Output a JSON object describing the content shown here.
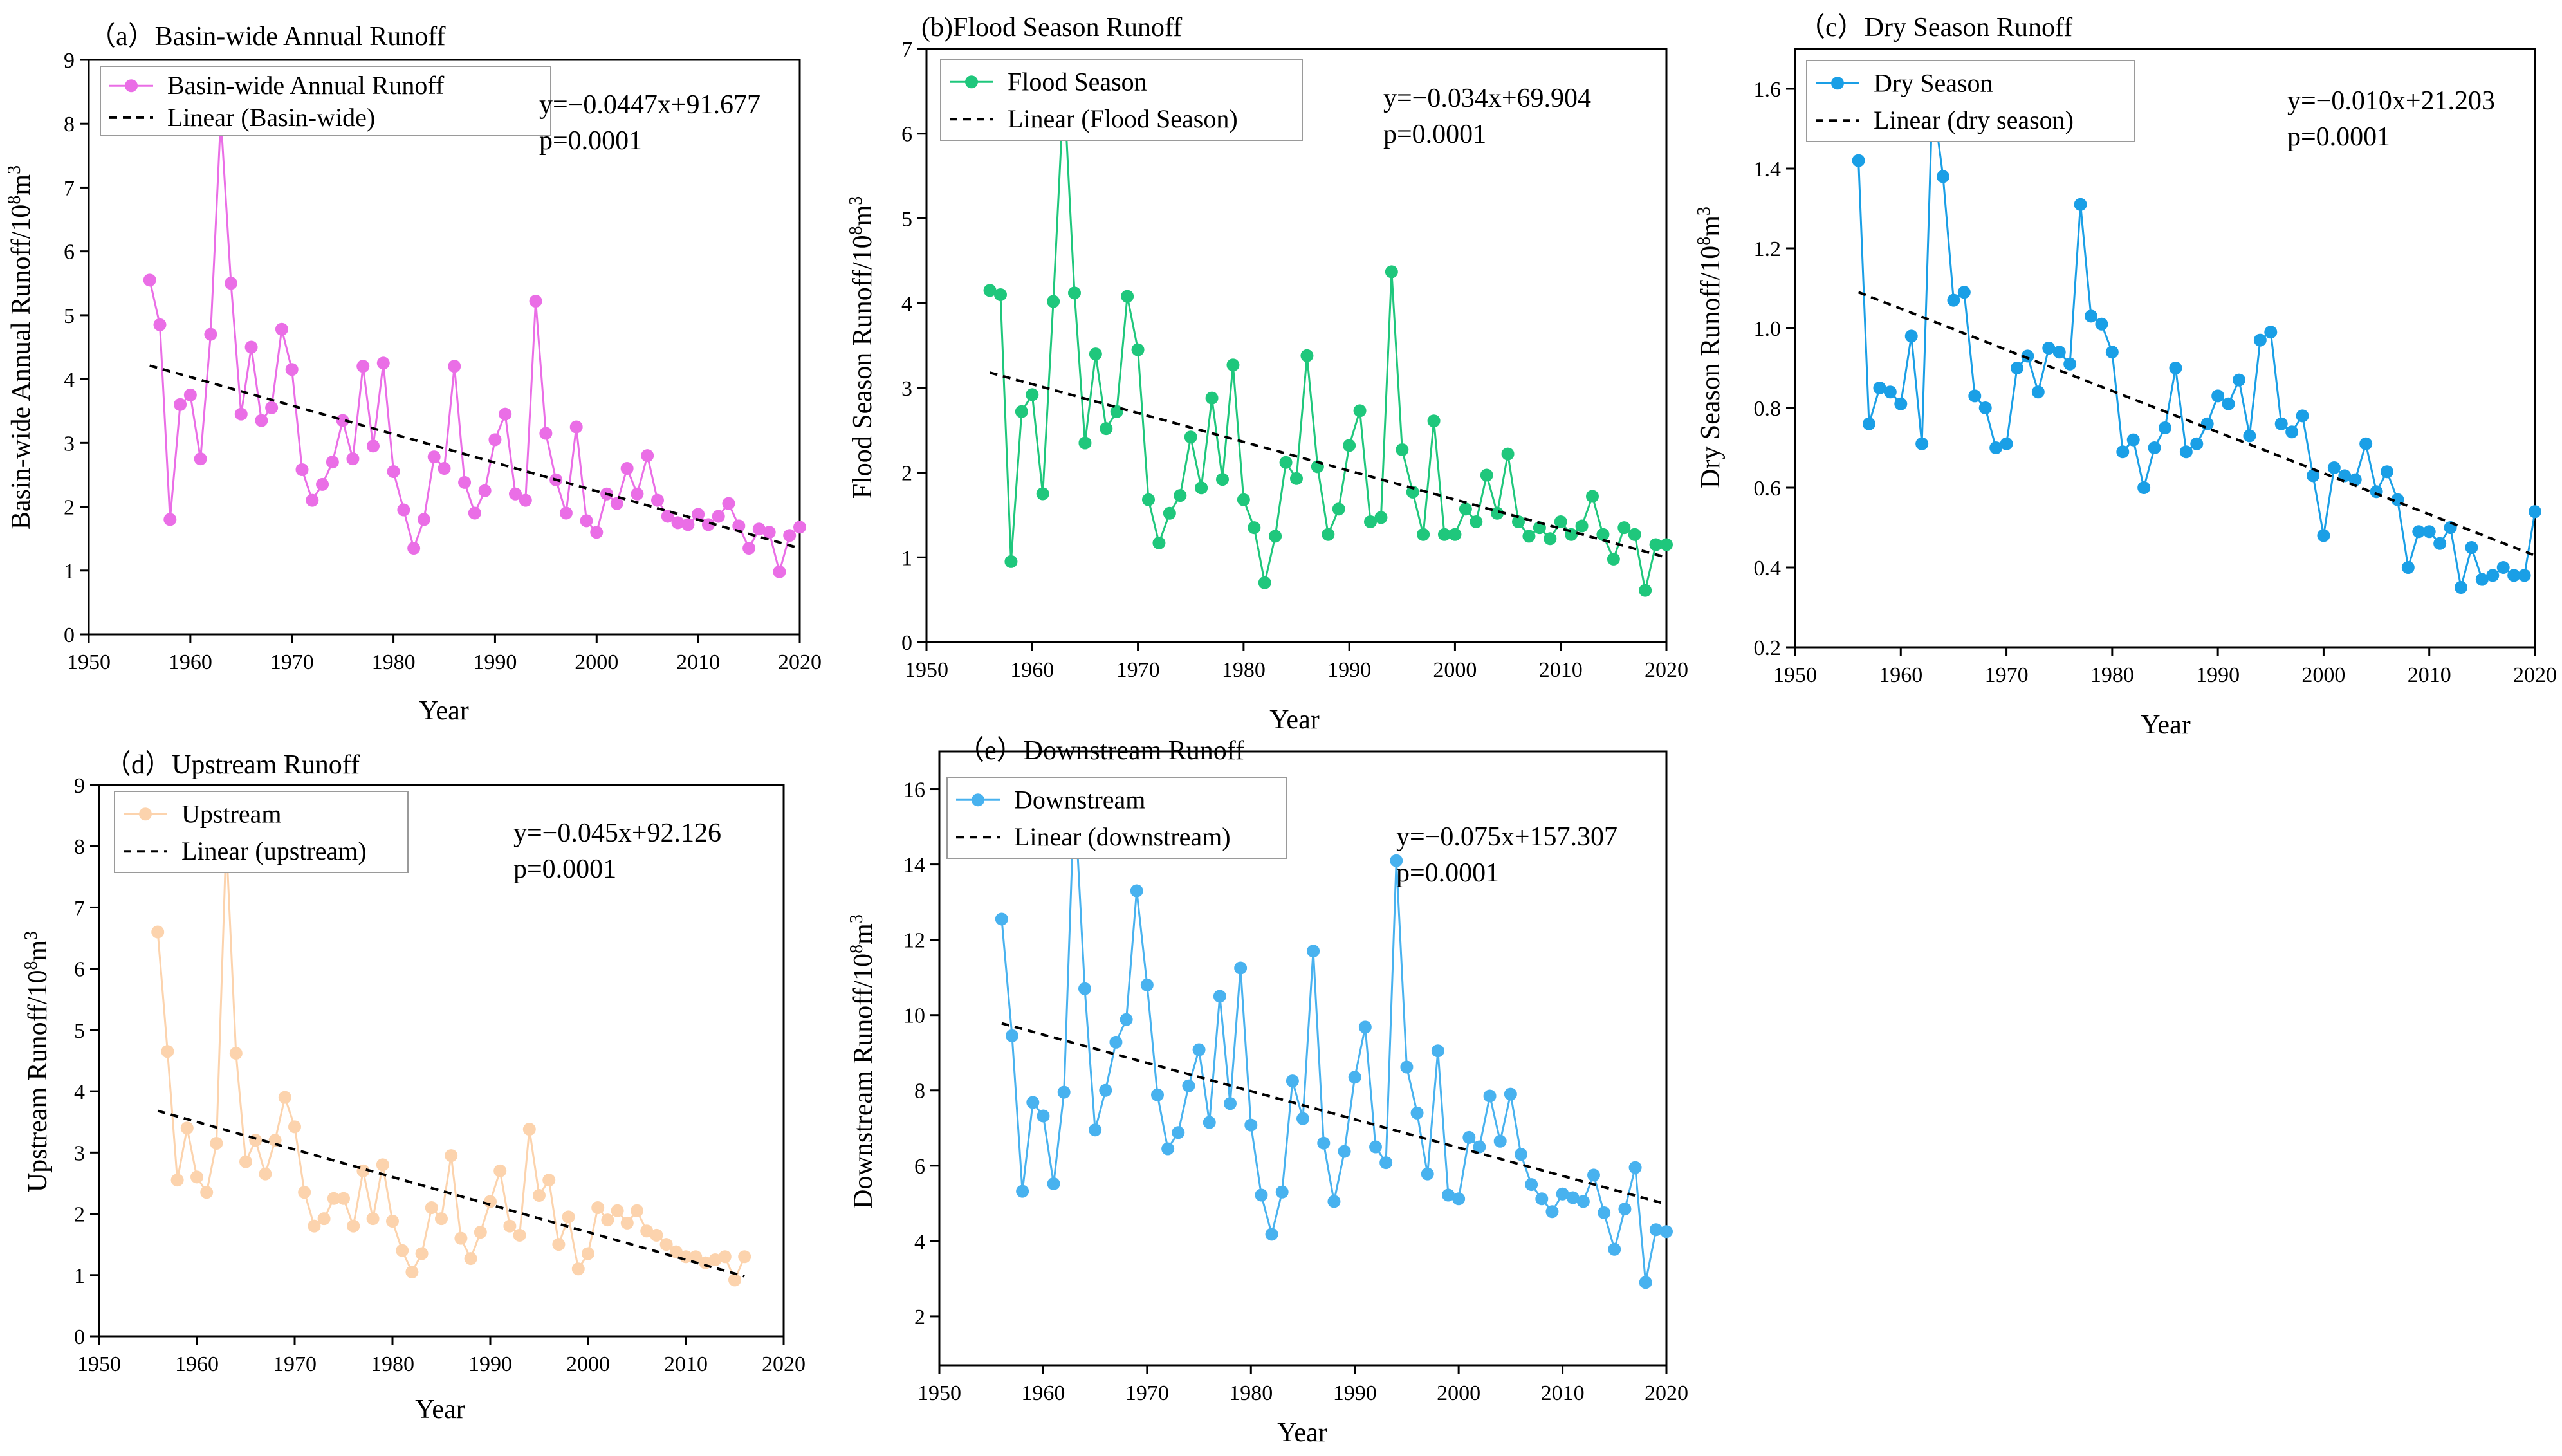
{
  "chart_data": [
    {
      "id": "a",
      "type": "line",
      "title": "（a）Basin-wide Annual Runoff",
      "xlabel": "Year",
      "ylabel": "Basin-wide Annual Runoff/10⁸m³",
      "xlim": [
        1950,
        2020
      ],
      "ylim": [
        0,
        9
      ],
      "xticks": [
        1950,
        1960,
        1970,
        1980,
        1990,
        2000,
        2010,
        2020
      ],
      "yticks": [
        0,
        1,
        2,
        3,
        4,
        5,
        6,
        7,
        8,
        9
      ],
      "color": "#ea6ee6",
      "legend": [
        "Basin-wide Annual Runoff",
        "Linear (Basin-wide)"
      ],
      "equation": "y=−0.0447x+91.677",
      "pvalue": "p=0.0001",
      "trend": {
        "x": [
          1956,
          2020
        ],
        "y": [
          4.21,
          1.35
        ]
      },
      "series": [
        {
          "name": "Basin-wide Annual Runoff",
          "x": [
            1956,
            1957,
            1958,
            1959,
            1960,
            1961,
            1962,
            1963,
            1964,
            1965,
            1966,
            1967,
            1968,
            1969,
            1970,
            1971,
            1972,
            1973,
            1974,
            1975,
            1976,
            1977,
            1978,
            1979,
            1980,
            1981,
            1982,
            1983,
            1984,
            1985,
            1986,
            1987,
            1988,
            1989,
            1990,
            1991,
            1992,
            1993,
            1994,
            1995,
            1996,
            1997,
            1998,
            1999,
            2000,
            2001,
            2002,
            2003,
            2004,
            2005,
            2006,
            2007,
            2008,
            2009,
            2010,
            2011,
            2012,
            2013,
            2014,
            2015,
            2016,
            2017,
            2018,
            2019,
            2020
          ],
          "y": [
            5.55,
            4.85,
            1.8,
            3.6,
            3.75,
            2.75,
            4.7,
            8.1,
            5.5,
            3.45,
            4.5,
            3.35,
            3.55,
            4.78,
            4.15,
            2.58,
            2.1,
            2.35,
            2.7,
            3.35,
            2.75,
            4.2,
            2.95,
            4.25,
            2.55,
            1.95,
            1.35,
            1.8,
            2.78,
            2.6,
            4.2,
            2.38,
            1.9,
            2.25,
            3.05,
            3.45,
            2.2,
            2.1,
            5.22,
            3.15,
            2.42,
            1.9,
            3.25,
            1.78,
            1.6,
            2.2,
            2.05,
            2.6,
            2.2,
            2.8,
            2.1,
            1.85,
            1.75,
            1.72,
            1.88,
            1.72,
            1.85,
            2.05,
            1.7,
            1.35,
            1.65,
            1.6,
            0.98,
            1.55,
            1.68
          ]
        }
      ]
    },
    {
      "id": "b",
      "type": "line",
      "title": "(b)Flood Season Runoff",
      "xlabel": "Year",
      "ylabel": "Flood Season Runoff/10⁸m³",
      "xlim": [
        1950,
        2020
      ],
      "ylim": [
        0,
        7
      ],
      "xticks": [
        1950,
        1960,
        1970,
        1980,
        1990,
        2000,
        2010,
        2020
      ],
      "yticks": [
        0,
        1,
        2,
        3,
        4,
        5,
        6,
        7
      ],
      "color": "#1fc77c",
      "legend": [
        "Flood Season",
        "Linear (Flood Season)"
      ],
      "equation": "y=−0.034x+69.904",
      "pvalue": "p=0.0001",
      "trend": {
        "x": [
          1956,
          2020
        ],
        "y": [
          3.18,
          1.0
        ]
      },
      "series": [
        {
          "name": "Flood Season",
          "x": [
            1956,
            1957,
            1958,
            1959,
            1960,
            1961,
            1962,
            1963,
            1964,
            1965,
            1966,
            1967,
            1968,
            1969,
            1970,
            1971,
            1972,
            1973,
            1974,
            1975,
            1976,
            1977,
            1978,
            1979,
            1980,
            1981,
            1982,
            1983,
            1984,
            1985,
            1986,
            1987,
            1988,
            1989,
            1990,
            1991,
            1992,
            1993,
            1994,
            1995,
            1996,
            1997,
            1998,
            1999,
            2000,
            2001,
            2002,
            2003,
            2004,
            2005,
            2006,
            2007,
            2008,
            2009,
            2010,
            2011,
            2012,
            2013,
            2014,
            2015,
            2016,
            2017,
            2018,
            2019,
            2020
          ],
          "y": [
            4.15,
            4.1,
            0.95,
            2.72,
            2.92,
            1.75,
            4.02,
            6.55,
            4.12,
            2.35,
            3.4,
            2.52,
            2.72,
            4.08,
            3.45,
            1.68,
            1.17,
            1.52,
            1.73,
            2.42,
            1.82,
            2.88,
            1.92,
            3.27,
            1.68,
            1.35,
            0.7,
            1.25,
            2.12,
            1.93,
            3.38,
            2.07,
            1.27,
            1.57,
            2.32,
            2.73,
            1.42,
            1.47,
            4.37,
            2.27,
            1.77,
            1.27,
            2.61,
            1.27,
            1.27,
            1.57,
            1.42,
            1.97,
            1.52,
            2.22,
            1.42,
            1.25,
            1.35,
            1.22,
            1.42,
            1.27,
            1.37,
            1.72,
            1.27,
            0.98,
            1.35,
            1.27,
            0.61,
            1.15,
            1.15
          ]
        }
      ]
    },
    {
      "id": "c",
      "type": "line",
      "title": "（c）Dry Season Runoff",
      "xlabel": "Year",
      "ylabel": "Dry Season Runoff/10⁸m³",
      "xlim": [
        1950,
        2020
      ],
      "ylim": [
        0.2,
        1.7
      ],
      "xticks": [
        1950,
        1960,
        1970,
        1980,
        1990,
        2000,
        2010,
        2020
      ],
      "yticks": [
        0.2,
        0.4,
        0.6,
        0.8,
        1.0,
        1.2,
        1.4,
        1.6
      ],
      "color": "#1a9fe6",
      "legend": [
        "Dry Season",
        "Linear (dry season)"
      ],
      "equation": "y=−0.010x+21.203",
      "pvalue": "p=0.0001",
      "trend": {
        "x": [
          1956,
          2020
        ],
        "y": [
          1.09,
          0.43
        ]
      },
      "series": [
        {
          "name": "Dry Season",
          "x": [
            1956,
            1957,
            1958,
            1959,
            1960,
            1961,
            1962,
            1963,
            1964,
            1965,
            1966,
            1967,
            1968,
            1969,
            1970,
            1971,
            1972,
            1973,
            1974,
            1975,
            1976,
            1977,
            1978,
            1979,
            1980,
            1981,
            1982,
            1983,
            1984,
            1985,
            1986,
            1987,
            1988,
            1989,
            1990,
            1991,
            1992,
            1993,
            1994,
            1995,
            1996,
            1997,
            1998,
            1999,
            2000,
            2001,
            2002,
            2003,
            2004,
            2005,
            2006,
            2007,
            2008,
            2009,
            2010,
            2011,
            2012,
            2013,
            2014,
            2015,
            2016,
            2017,
            2018,
            2019,
            2020
          ],
          "y": [
            1.42,
            0.76,
            0.85,
            0.84,
            0.81,
            0.98,
            0.71,
            1.58,
            1.38,
            1.07,
            1.09,
            0.83,
            0.8,
            0.7,
            0.71,
            0.9,
            0.93,
            0.84,
            0.95,
            0.94,
            0.91,
            1.31,
            1.03,
            1.01,
            0.94,
            0.69,
            0.72,
            0.6,
            0.7,
            0.75,
            0.9,
            0.69,
            0.71,
            0.76,
            0.83,
            0.81,
            0.87,
            0.73,
            0.97,
            0.99,
            0.76,
            0.74,
            0.78,
            0.63,
            0.48,
            0.65,
            0.63,
            0.62,
            0.71,
            0.59,
            0.64,
            0.57,
            0.4,
            0.49,
            0.49,
            0.46,
            0.5,
            0.35,
            0.45,
            0.37,
            0.38,
            0.4,
            0.38,
            0.38,
            0.54
          ]
        }
      ]
    },
    {
      "id": "d",
      "type": "line",
      "title": "（d）Upstream Runoff",
      "xlabel": "Year",
      "ylabel": "Upstream Runoff/10⁸m³",
      "xlim": [
        1950,
        2020
      ],
      "ylim": [
        0,
        9
      ],
      "xticks": [
        1950,
        1960,
        1970,
        1980,
        1990,
        2000,
        2010,
        2020
      ],
      "yticks": [
        0,
        1,
        2,
        3,
        4,
        5,
        6,
        7,
        8,
        9
      ],
      "color": "#fcd3ad",
      "legend": [
        "Upstream",
        "Linear (upstream)"
      ],
      "equation": "y=−0.045x+92.126",
      "pvalue": "p=0.0001",
      "trend": {
        "x": [
          1956,
          2016
        ],
        "y": [
          3.68,
          0.98
        ]
      },
      "series": [
        {
          "name": "Upstream",
          "x": [
            1956,
            1957,
            1958,
            1959,
            1960,
            1961,
            1962,
            1963,
            1964,
            1965,
            1966,
            1967,
            1968,
            1969,
            1970,
            1971,
            1972,
            1973,
            1974,
            1975,
            1976,
            1977,
            1978,
            1979,
            1980,
            1981,
            1982,
            1983,
            1984,
            1985,
            1986,
            1987,
            1988,
            1989,
            1990,
            1991,
            1992,
            1993,
            1994,
            1995,
            1996,
            1997,
            1998,
            1999,
            2000,
            2001,
            2002,
            2003,
            2004,
            2005,
            2006,
            2007,
            2008,
            2009,
            2010,
            2011,
            2012,
            2013,
            2014,
            2015,
            2016
          ],
          "y": [
            6.6,
            4.65,
            2.55,
            3.4,
            2.6,
            2.35,
            3.15,
            8.1,
            4.62,
            2.85,
            3.2,
            2.65,
            3.2,
            3.9,
            3.42,
            2.35,
            1.8,
            1.92,
            2.25,
            2.25,
            1.8,
            2.7,
            1.92,
            2.8,
            1.88,
            1.4,
            1.05,
            1.35,
            2.1,
            1.92,
            2.95,
            1.6,
            1.27,
            1.7,
            2.2,
            2.7,
            1.8,
            1.65,
            3.38,
            2.3,
            2.55,
            1.5,
            1.95,
            1.1,
            1.35,
            2.1,
            1.9,
            2.05,
            1.85,
            2.05,
            1.72,
            1.65,
            1.5,
            1.38,
            1.3,
            1.3,
            1.2,
            1.25,
            1.3,
            0.92,
            1.3
          ]
        }
      ]
    },
    {
      "id": "e",
      "type": "line",
      "title": "（e）Downstream Runoff",
      "xlabel": "Year",
      "ylabel": "Downstream Runoff/10⁸m³",
      "xlim": [
        1950,
        2020
      ],
      "ylim": [
        0.7,
        17
      ],
      "xticks": [
        1950,
        1960,
        1970,
        1980,
        1990,
        2000,
        2010,
        2020
      ],
      "yticks": [
        2,
        4,
        6,
        8,
        10,
        12,
        14,
        16
      ],
      "color": "#48b2ef",
      "legend": [
        "Downstream",
        "Linear (downstream)"
      ],
      "equation": "y=−0.075x+157.307",
      "pvalue": "p=0.0001",
      "trend": {
        "x": [
          1956,
          2020
        ],
        "y": [
          9.78,
          4.98
        ]
      },
      "series": [
        {
          "name": "Downstream",
          "x": [
            1956,
            1957,
            1958,
            1959,
            1960,
            1961,
            1962,
            1963,
            1964,
            1965,
            1966,
            1967,
            1968,
            1969,
            1970,
            1971,
            1972,
            1973,
            1974,
            1975,
            1976,
            1977,
            1978,
            1979,
            1980,
            1981,
            1982,
            1983,
            1984,
            1985,
            1986,
            1987,
            1988,
            1989,
            1990,
            1991,
            1992,
            1993,
            1994,
            1995,
            1996,
            1997,
            1998,
            1999,
            2000,
            2001,
            2002,
            2003,
            2004,
            2005,
            2006,
            2007,
            2008,
            2009,
            2010,
            2011,
            2012,
            2013,
            2014,
            2015,
            2016,
            2017,
            2018,
            2019,
            2020
          ],
          "y": [
            12.55,
            9.45,
            5.32,
            7.68,
            7.32,
            5.52,
            7.95,
            15.9,
            10.7,
            6.95,
            8.0,
            9.28,
            9.88,
            13.3,
            10.8,
            7.88,
            6.45,
            6.88,
            8.12,
            9.08,
            7.15,
            10.5,
            7.65,
            11.25,
            7.08,
            5.22,
            4.18,
            5.3,
            8.25,
            7.25,
            11.7,
            6.6,
            5.05,
            6.38,
            8.35,
            9.68,
            6.5,
            6.08,
            14.1,
            8.62,
            7.4,
            5.78,
            9.05,
            5.22,
            5.12,
            6.75,
            6.5,
            7.85,
            6.65,
            7.9,
            6.3,
            5.5,
            5.12,
            4.78,
            5.25,
            5.15,
            5.05,
            5.75,
            4.75,
            3.78,
            4.85,
            5.95,
            2.9,
            4.3,
            4.25
          ]
        }
      ]
    }
  ]
}
